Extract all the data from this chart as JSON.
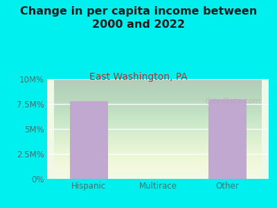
{
  "title": "Change in per capita income between\n2000 and 2022",
  "subtitle": "East Washington, PA",
  "categories": [
    "Hispanic",
    "Multirace",
    "Other"
  ],
  "values": [
    7800000,
    0,
    8000000
  ],
  "bar_color": "#c0a8d0",
  "background_color": "#00f0f0",
  "plot_bg_top": "#f0f8e8",
  "plot_bg_bottom": "#e8f5e0",
  "title_color": "#1a1a1a",
  "subtitle_color": "#b03030",
  "axis_label_color": "#407070",
  "yticks": [
    0,
    2500000,
    5000000,
    7500000,
    10000000
  ],
  "ytick_labels": [
    "0%",
    "2.5M%",
    "5M%",
    "7.5M%",
    "10M%"
  ],
  "ylim": [
    0,
    10000000
  ],
  "watermark": "   City-Data.com",
  "title_fontsize": 11.5,
  "subtitle_fontsize": 10,
  "tick_fontsize": 8.5
}
